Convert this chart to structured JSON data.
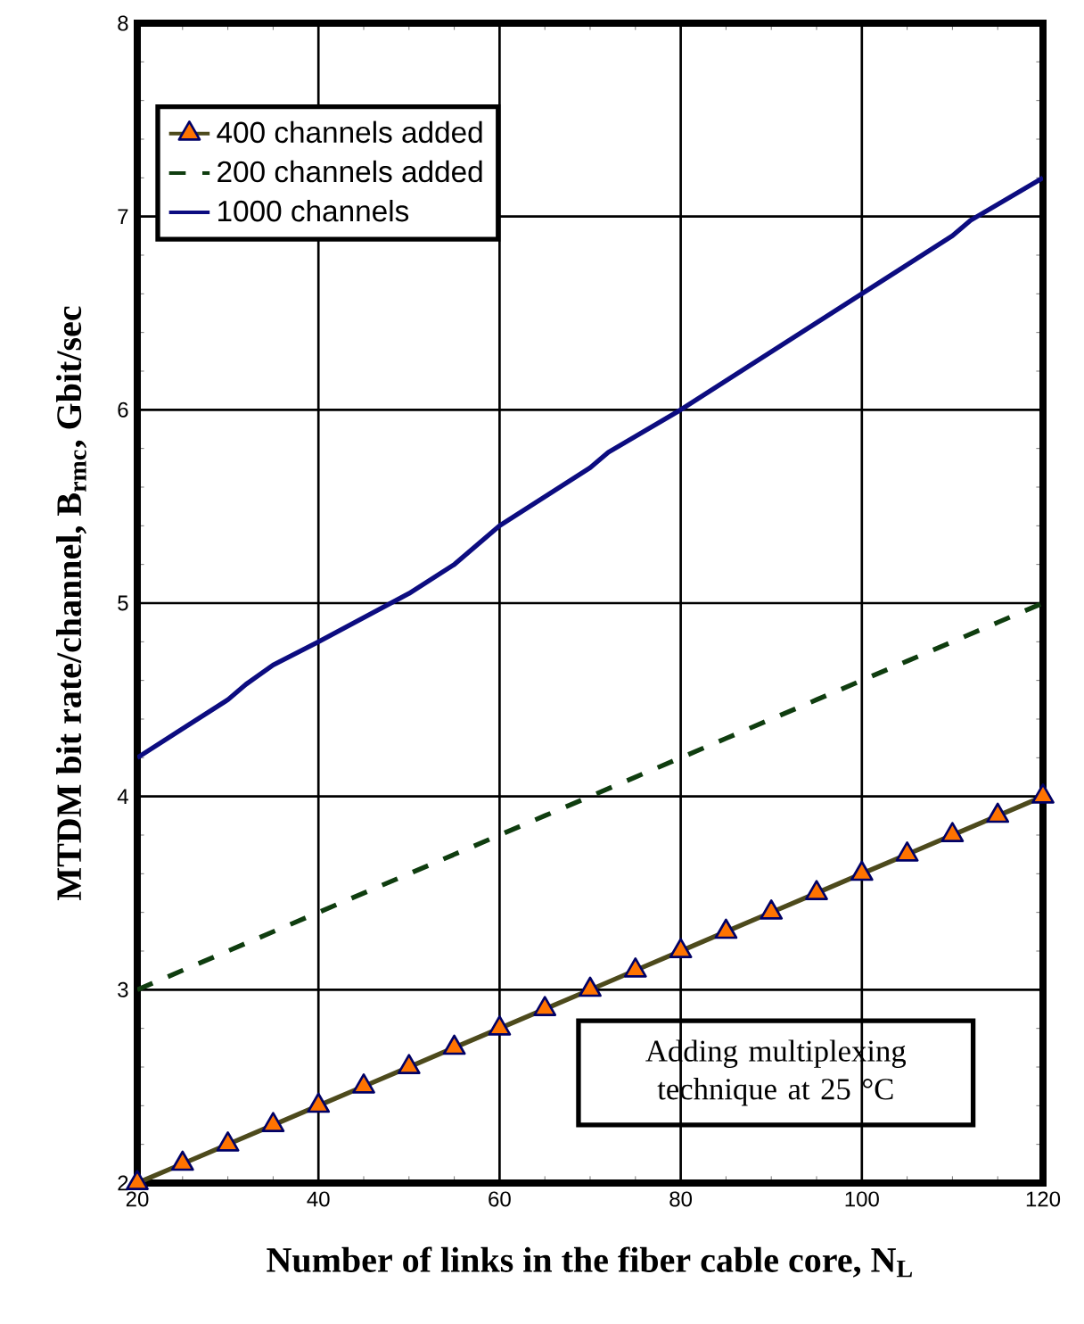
{
  "chart_data": {
    "type": "line",
    "xlabel": "Number of links in the fiber cable core, N$_{L}$",
    "ylabel": "MTDM bit rate/channel, B$_{rmc}$,  Gbit/sec",
    "xlim": [
      20,
      120
    ],
    "ylim": [
      2,
      8
    ],
    "xticks": [
      20,
      40,
      60,
      80,
      100,
      120
    ],
    "yticks": [
      2,
      3,
      4,
      5,
      6,
      7,
      8
    ],
    "grid": true,
    "legend": "top left",
    "annotations": [
      "Adding multiplexing technique at  25 °C"
    ],
    "series": [
      {
        "name": "400 channels added",
        "color": "#4d4a1c",
        "marker": "triangle",
        "line_style": "solid",
        "x": [
          20,
          25,
          30,
          35,
          40,
          45,
          50,
          55,
          60,
          65,
          70,
          75,
          80,
          85,
          90,
          95,
          100,
          105,
          110,
          115,
          120
        ],
        "values": [
          2.0,
          2.1,
          2.2,
          2.3,
          2.4,
          2.5,
          2.6,
          2.7,
          2.8,
          2.9,
          3.0,
          3.1,
          3.2,
          3.3,
          3.4,
          3.5,
          3.6,
          3.7,
          3.8,
          3.9,
          4.0
        ]
      },
      {
        "name": "200 channels added",
        "color": "#0f3d0f",
        "marker": "none",
        "line_style": "dashed",
        "x": [
          20,
          25,
          30,
          35,
          40,
          45,
          50,
          55,
          60,
          65,
          70,
          75,
          80,
          85,
          90,
          95,
          100,
          105,
          110,
          115,
          120
        ],
        "values": [
          3.0,
          3.1,
          3.2,
          3.3,
          3.4,
          3.5,
          3.6,
          3.7,
          3.8,
          3.9,
          4.0,
          4.1,
          4.2,
          4.3,
          4.4,
          4.5,
          4.6,
          4.7,
          4.8,
          4.9,
          5.0
        ]
      },
      {
        "name": "1000 channels",
        "color": "#0c0c80",
        "marker": "none",
        "line_style": "solid",
        "x": [
          20,
          25,
          30,
          32,
          35,
          40,
          50,
          55,
          60,
          70,
          72,
          80,
          85,
          100,
          105,
          110,
          112,
          120
        ],
        "values": [
          4.2,
          4.35,
          4.5,
          4.58,
          4.68,
          4.8,
          5.05,
          5.2,
          5.4,
          5.7,
          5.78,
          6.0,
          6.15,
          6.6,
          6.75,
          6.9,
          6.98,
          7.2
        ]
      }
    ]
  }
}
